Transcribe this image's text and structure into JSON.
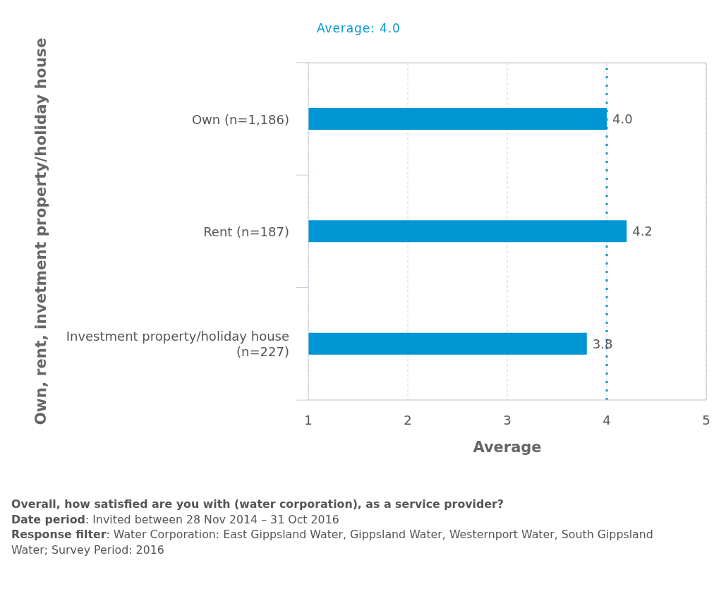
{
  "chart_data": {
    "type": "bar",
    "orientation": "horizontal",
    "xlabel": "Average",
    "ylabel": "Own, rent, invetment property/holiday house",
    "categories": [
      "Own (n=1,186)",
      "Rent (n=187)",
      "Investment property/holiday house (n=227)"
    ],
    "values": [
      4.0,
      4.2,
      3.8
    ],
    "value_labels": [
      "4.0",
      "4.2",
      "3.8"
    ],
    "color": "#0096d6",
    "xlim": [
      1,
      5
    ],
    "xticks": [
      1,
      2,
      3,
      4,
      5
    ],
    "grid": "x",
    "ref_lines": [
      {
        "axis": "x",
        "value": 4.0,
        "label": "Average: 4.0",
        "color": "#0096d6",
        "line_style": "dotted"
      }
    ],
    "annotations": [
      "Overall, how satisfied are you with (water corporation), as a service provider?",
      "Date period: Invited between 28 Nov 2014 – 31 Oct 2016",
      "Response filter: Water Corporation: East Gippsland Water, Gippsland Water, Westernport Water, South Gippsland Water; Survey Period: 2016"
    ]
  }
}
